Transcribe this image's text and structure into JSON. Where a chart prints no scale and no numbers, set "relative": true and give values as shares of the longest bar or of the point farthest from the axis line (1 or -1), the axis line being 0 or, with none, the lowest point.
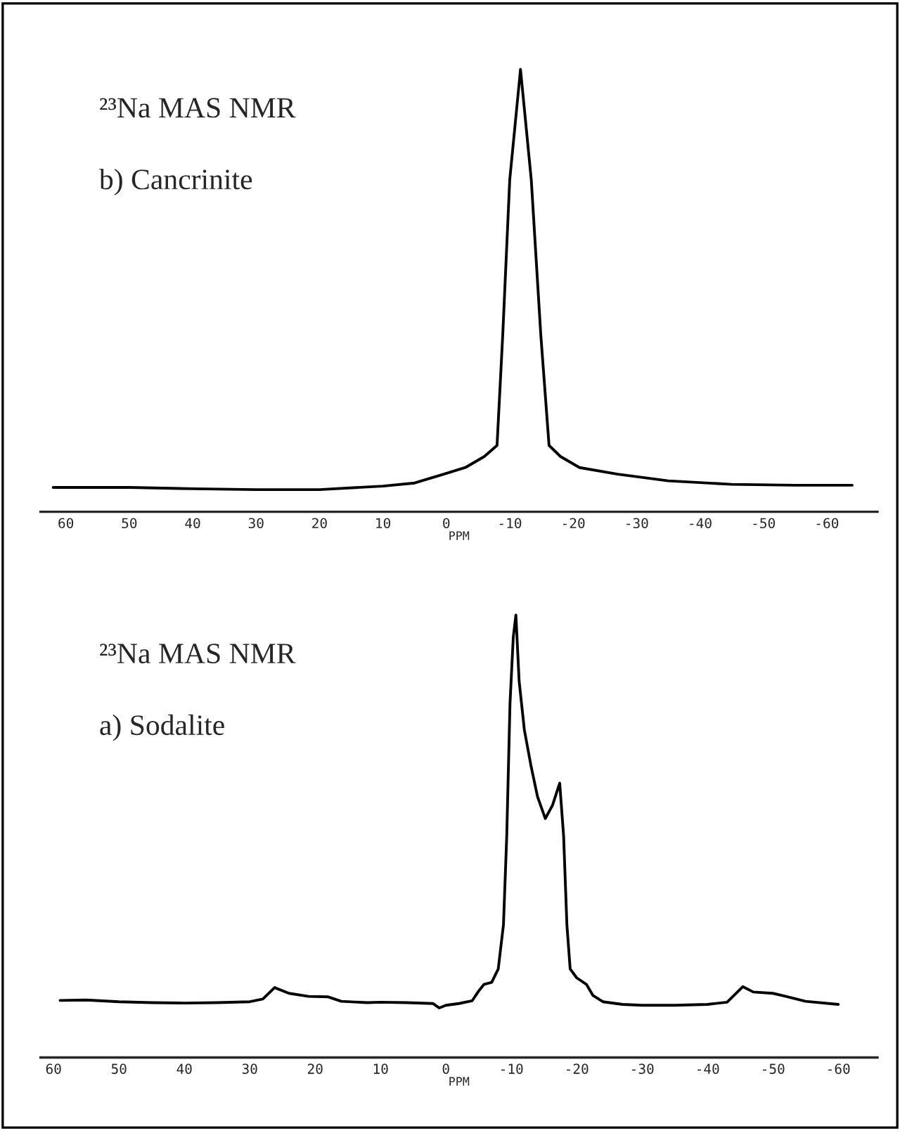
{
  "chart_data": [
    {
      "type": "line",
      "relative": true,
      "xlabel": "PPM",
      "annotations": [
        "²³Na MAS NMR",
        "b) Cancrinite"
      ],
      "xlim": [
        64,
        -68
      ],
      "xticks": [
        60,
        50,
        40,
        30,
        20,
        10,
        0,
        -10,
        -20,
        -30,
        -40,
        -50,
        -60
      ],
      "series": [
        {
          "color": "#000000",
          "x": [
            62,
            50,
            40,
            30,
            20,
            10,
            5,
            0.4,
            -3,
            -6,
            -8,
            -8.9,
            -10,
            -11.7,
            -13.4,
            -14.9,
            -16.2,
            -18,
            -21,
            -27,
            -35,
            -45,
            -55,
            -64
          ],
          "values": [
            0.055,
            0.055,
            0.052,
            0.05,
            0.05,
            0.058,
            0.065,
            0.085,
            0.1,
            0.125,
            0.15,
            0.4,
            0.75,
            1.0,
            0.75,
            0.4,
            0.15,
            0.125,
            0.1,
            0.085,
            0.07,
            0.062,
            0.06,
            0.06
          ]
        }
      ]
    },
    {
      "type": "line",
      "relative": true,
      "xlabel": "PPM",
      "annotations": [
        "²³Na MAS NMR",
        "a) Sodalite"
      ],
      "xlim": [
        62,
        -66
      ],
      "xticks": [
        60,
        50,
        40,
        30,
        20,
        10,
        0,
        -10,
        -20,
        -30,
        -40,
        -50,
        -60
      ],
      "series": [
        {
          "color": "#000000",
          "x": [
            59,
            55,
            50,
            45,
            40,
            35,
            30,
            28,
            26.2,
            24,
            21,
            18,
            16,
            12,
            10,
            6,
            2,
            1,
            0,
            -2,
            -4,
            -5,
            -5.8,
            -7,
            -8,
            -8.8,
            -9.3,
            -9.8,
            -10.3,
            -10.7,
            -11.2,
            -12,
            -13,
            -14,
            -15.2,
            -16.3,
            -17.4,
            -18,
            -18.5,
            -19,
            -20,
            -21.5,
            -22.5,
            -24,
            -27,
            -30,
            -35,
            -40,
            -43,
            -45.4,
            -47,
            -50,
            -52,
            -55,
            -60
          ],
          "values": [
            0.129,
            0.13,
            0.126,
            0.124,
            0.123,
            0.124,
            0.126,
            0.132,
            0.158,
            0.145,
            0.138,
            0.137,
            0.127,
            0.124,
            0.125,
            0.124,
            0.122,
            0.112,
            0.118,
            0.122,
            0.128,
            0.15,
            0.165,
            0.17,
            0.2,
            0.3,
            0.5,
            0.8,
            0.95,
            1.0,
            0.85,
            0.74,
            0.66,
            0.59,
            0.54,
            0.57,
            0.62,
            0.5,
            0.3,
            0.2,
            0.18,
            0.165,
            0.14,
            0.126,
            0.12,
            0.118,
            0.118,
            0.12,
            0.125,
            0.16,
            0.148,
            0.145,
            0.138,
            0.127,
            0.12
          ]
        }
      ]
    }
  ]
}
